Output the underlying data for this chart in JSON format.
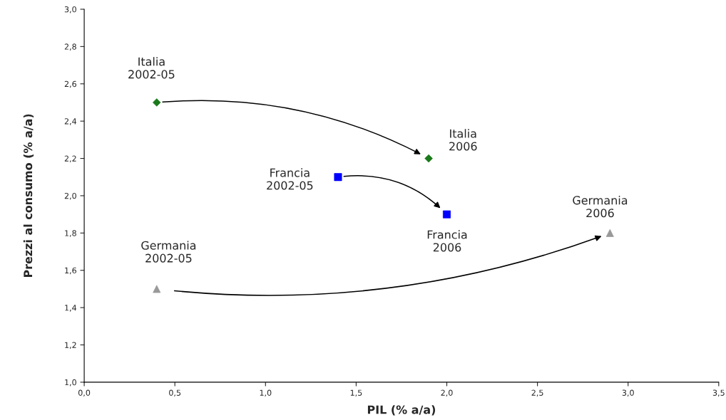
{
  "chart_data": {
    "type": "scatter",
    "xlabel": "PIL (% a/a)",
    "ylabel": "Prezzi al consumo (% a/a)",
    "series": [
      {
        "x": [
          0.4,
          1.9
        ],
        "values": [
          2.5,
          2.2
        ],
        "color": "#1a7a1a",
        "marker": "diamond"
      },
      {
        "x": [
          1.4,
          2.0
        ],
        "values": [
          2.1,
          1.9
        ],
        "color": "#0000ff",
        "marker": "square"
      },
      {
        "x": [
          0.4,
          2.9
        ],
        "values": [
          1.5,
          1.8
        ],
        "color": "#999999",
        "marker": "triangle"
      }
    ],
    "xlim": [
      0.0,
      3.5
    ],
    "xticks": [
      {
        "value": 0.0,
        "label": "0,0"
      },
      {
        "value": 0.5,
        "label": "0,5"
      },
      {
        "value": 1.0,
        "label": "1,0"
      },
      {
        "value": 1.5,
        "label": "1,5"
      },
      {
        "value": 2.0,
        "label": "2,0"
      },
      {
        "value": 2.5,
        "label": "2,5"
      },
      {
        "value": 3.0,
        "label": "3,0"
      },
      {
        "value": 3.5,
        "label": "3,5"
      }
    ],
    "ylim": [
      1.0,
      3.0
    ],
    "yticks": [
      {
        "value": 1.0,
        "label": "1,0"
      },
      {
        "value": 1.2,
        "label": "1,2"
      },
      {
        "value": 1.4,
        "label": "1,4"
      },
      {
        "value": 1.6,
        "label": "1,6"
      },
      {
        "value": 1.8,
        "label": "1,8"
      },
      {
        "value": 2.0,
        "label": "2,0"
      },
      {
        "value": 2.2,
        "label": "2,2"
      },
      {
        "value": 2.4,
        "label": "2,4"
      },
      {
        "value": 2.6,
        "label": "2,6"
      },
      {
        "value": 2.8,
        "label": "2,8"
      },
      {
        "value": 3.0,
        "label": "3,0"
      }
    ],
    "annotations": [
      "Italia\n2002-05",
      "Italia\n2006",
      "Francia\n2002-05",
      "Francia\n2006",
      "Germania\n2002-05",
      "Germania\n2006"
    ],
    "grid": false,
    "legend": false
  }
}
